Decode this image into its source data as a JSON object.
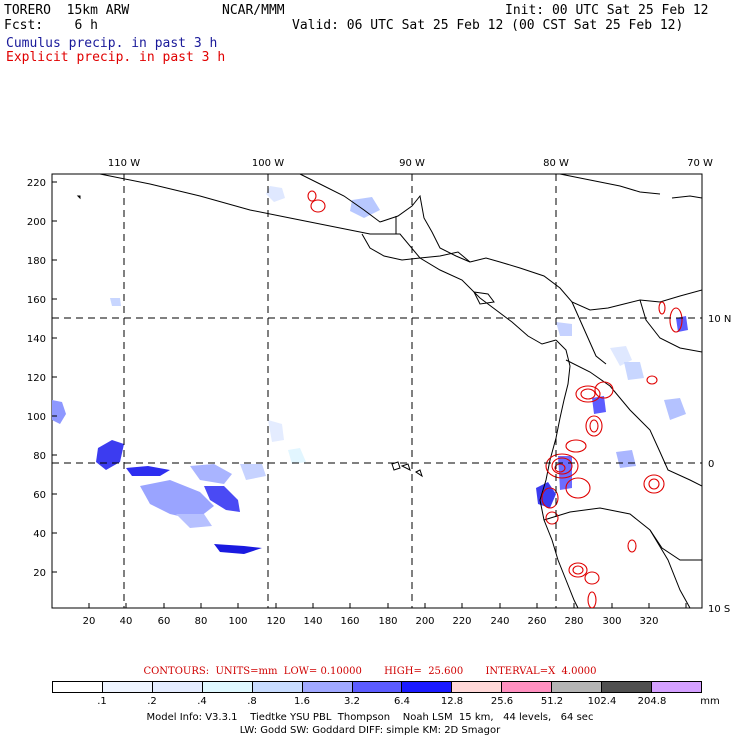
{
  "header": {
    "model": "TORERO  15km ARW",
    "org": "NCAR/MMM",
    "init": "Init: 00 UTC Sat 25 Feb 12",
    "fcst": "Fcst:    6 h",
    "valid": "Valid: 06 UTC Sat 25 Feb 12 (00 CST Sat 25 Feb 12)",
    "cumulus": "Cumulus precip. in past 3 h",
    "explicit": "Explicit precip. in past 3 h"
  },
  "axes": {
    "top": [
      "110 W",
      "100 W",
      "90 W",
      "80 W",
      "70 W"
    ],
    "right": [
      "10 N",
      "0",
      "10 S"
    ],
    "left": [
      "220",
      "200",
      "180",
      "160",
      "140",
      "120",
      "100",
      "80",
      "60",
      "40",
      "20"
    ],
    "bottom": [
      "20",
      "40",
      "60",
      "80",
      "100",
      "120",
      "140",
      "160",
      "180",
      "200",
      "220",
      "240",
      "260",
      "280",
      "300",
      "320"
    ]
  },
  "contours_line": "CONTOURS:  UNITS=mm  LOW= 0.10000       HIGH=  25.600       INTERVAL=X  4.0000",
  "legend": {
    "labels": [
      ".1",
      ".2",
      ".4",
      ".8",
      "1.6",
      "3.2",
      "6.4",
      "12.8",
      "25.6",
      "51.2",
      "102.4",
      "204.8"
    ],
    "unit": "mm",
    "colors": [
      "#ffffff",
      "#eef4ff",
      "#e4ecff",
      "#dff8ff",
      "#c8dcff",
      "#a0a8ff",
      "#5c5cff",
      "#1a1aff",
      "#ffd8d8",
      "#ff90c0",
      "#b4b4b4",
      "#505050",
      "#d4a0ff"
    ]
  },
  "footer": {
    "line1": "Model Info: V3.3.1    Tiedtke YSU PBL  Thompson    Noah LSM  15 km,   44 levels,   64 sec",
    "line2": "LW: Godd SW: Goddard DIFF: simple KM: 2D Smagor"
  }
}
